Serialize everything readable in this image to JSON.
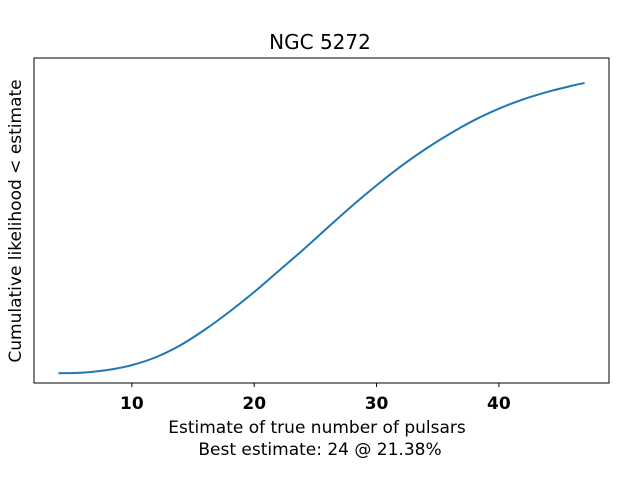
{
  "chart_data": {
    "type": "line",
    "title": "NGC 5272",
    "xlabel": "Estimate of true number of pulsars",
    "xlabel_line2": "Best estimate: 24 @ 21.38%",
    "ylabel": "Cumulative likelihood < estimate",
    "xlim": [
      2,
      49
    ],
    "ylim": [
      -0.03,
      0.97
    ],
    "xticks": [
      10,
      20,
      30,
      40
    ],
    "xtick_labels": [
      "10",
      "20",
      "30",
      "40"
    ],
    "yticks": [],
    "grid": false,
    "series": [
      {
        "color": "#1f77b4",
        "x": [
          4,
          6,
          8,
          10,
          12,
          14,
          16,
          18,
          20,
          22,
          24,
          26,
          28,
          30,
          32,
          34,
          36,
          38,
          40,
          42,
          44,
          46,
          47
        ],
        "y": [
          0.0,
          0.002,
          0.01,
          0.025,
          0.05,
          0.087,
          0.135,
          0.19,
          0.25,
          0.315,
          0.38,
          0.448,
          0.515,
          0.578,
          0.637,
          0.69,
          0.737,
          0.779,
          0.814,
          0.843,
          0.866,
          0.885,
          0.893
        ]
      }
    ]
  }
}
